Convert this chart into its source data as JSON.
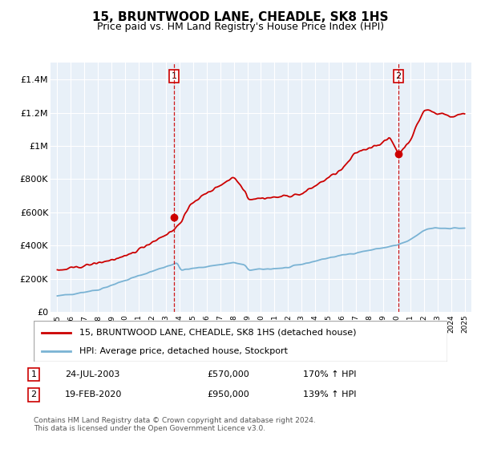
{
  "title": "15, BRUNTWOOD LANE, CHEADLE, SK8 1HS",
  "subtitle": "Price paid vs. HM Land Registry's House Price Index (HPI)",
  "title_fontsize": 11,
  "subtitle_fontsize": 9,
  "ylim": [
    0,
    1500000
  ],
  "yticks": [
    0,
    200000,
    400000,
    600000,
    800000,
    1000000,
    1200000,
    1400000
  ],
  "ytick_labels": [
    "£0",
    "£200K",
    "£400K",
    "£600K",
    "£800K",
    "£1M",
    "£1.2M",
    "£1.4M"
  ],
  "hpi_color": "#7ab3d4",
  "price_color": "#cc0000",
  "vline_color": "#cc0000",
  "chart_bg": "#e8f0f8",
  "marker1_price": 570000,
  "marker1_label": "24-JUL-2003",
  "marker1_pct": "170% ↑ HPI",
  "marker2_price": 950000,
  "marker2_label": "19-FEB-2020",
  "marker2_pct": "139% ↑ HPI",
  "legend_line1": "15, BRUNTWOOD LANE, CHEADLE, SK8 1HS (detached house)",
  "legend_line2": "HPI: Average price, detached house, Stockport",
  "footnote": "Contains HM Land Registry data © Crown copyright and database right 2024.\nThis data is licensed under the Open Government Licence v3.0.",
  "xlim_start": 1994.5,
  "xlim_end": 2025.5,
  "xtick_years": [
    1995,
    1996,
    1997,
    1998,
    1999,
    2000,
    2001,
    2002,
    2003,
    2004,
    2005,
    2006,
    2007,
    2008,
    2009,
    2010,
    2011,
    2012,
    2013,
    2014,
    2015,
    2016,
    2017,
    2018,
    2019,
    2020,
    2021,
    2022,
    2023,
    2024,
    2025
  ]
}
